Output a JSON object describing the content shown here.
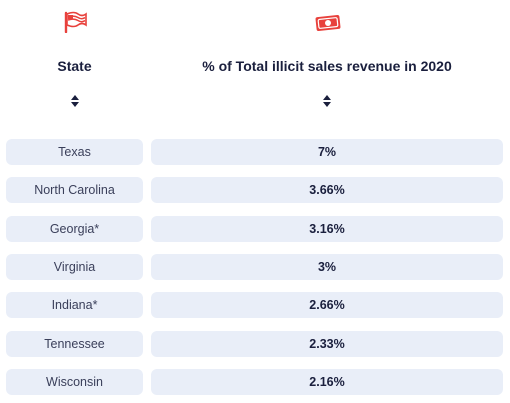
{
  "header": {
    "state_label": "State",
    "pct_label": "% of Total illicit sales revenue in 2020",
    "state_icon": "flag-icon",
    "pct_icon": "money-bill-icon",
    "sort_icon": "sort-icon"
  },
  "colors": {
    "accent_red": "#e8413c",
    "row_bg": "#e9eef8",
    "text_dark": "#1a1f3d"
  },
  "rows": [
    {
      "state": "Texas",
      "pct": "7%"
    },
    {
      "state": "North Carolina",
      "pct": "3.66%"
    },
    {
      "state": "Georgia*",
      "pct": "3.16%"
    },
    {
      "state": "Virginia",
      "pct": "3%"
    },
    {
      "state": "Indiana*",
      "pct": "2.66%"
    },
    {
      "state": "Tennessee",
      "pct": "2.33%"
    },
    {
      "state": "Wisconsin",
      "pct": "2.16%"
    }
  ]
}
